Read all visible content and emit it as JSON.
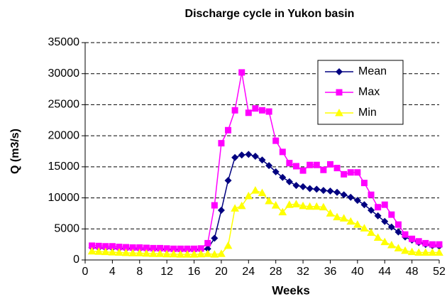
{
  "chart_data": {
    "type": "line",
    "title": "Discharge cycle in Yukon basin",
    "xlabel": "Weeks",
    "ylabel": "Q (m3/s)",
    "x": [
      1,
      2,
      3,
      4,
      5,
      6,
      7,
      8,
      9,
      10,
      11,
      12,
      13,
      14,
      15,
      16,
      17,
      18,
      19,
      20,
      21,
      22,
      23,
      24,
      25,
      26,
      27,
      28,
      29,
      30,
      31,
      32,
      33,
      34,
      35,
      36,
      37,
      38,
      39,
      40,
      41,
      42,
      43,
      44,
      45,
      46,
      47,
      48,
      49,
      50,
      51,
      52
    ],
    "xlim": [
      0,
      52
    ],
    "xticks": [
      0,
      4,
      8,
      12,
      16,
      20,
      24,
      28,
      32,
      36,
      40,
      44,
      48,
      52
    ],
    "ylim": [
      0,
      35000
    ],
    "yticks": [
      0,
      5000,
      10000,
      15000,
      20000,
      25000,
      30000,
      35000
    ],
    "grid": true,
    "legend": "upper right",
    "series": [
      {
        "name": "Mean",
        "color": "#000080",
        "marker": "diamond",
        "values": [
          2000,
          1950,
          1900,
          1900,
          1850,
          1800,
          1800,
          1750,
          1750,
          1700,
          1700,
          1650,
          1650,
          1600,
          1600,
          1600,
          1650,
          1800,
          3500,
          8000,
          12800,
          16500,
          16900,
          17000,
          16700,
          16100,
          15200,
          14200,
          13300,
          12600,
          12000,
          11800,
          11500,
          11400,
          11200,
          11100,
          10900,
          10500,
          10100,
          9600,
          8900,
          8000,
          7100,
          6200,
          5300,
          4500,
          3700,
          3200,
          2800,
          2500,
          2300,
          2200
        ]
      },
      {
        "name": "Max",
        "color": "#ff00ff",
        "marker": "square",
        "values": [
          2300,
          2250,
          2200,
          2200,
          2100,
          2050,
          2000,
          2000,
          1950,
          1900,
          1900,
          1850,
          1800,
          1800,
          1800,
          1800,
          1850,
          2700,
          8800,
          18800,
          20900,
          24100,
          30200,
          23700,
          24400,
          24100,
          23900,
          19200,
          17400,
          15600,
          15100,
          14400,
          15300,
          15300,
          14500,
          15400,
          14800,
          13800,
          14100,
          14100,
          12400,
          10500,
          8500,
          8900,
          7300,
          5700,
          4100,
          3400,
          3000,
          2700,
          2500,
          2500
        ]
      },
      {
        "name": "Min",
        "color": "#ffff00",
        "marker": "triangle",
        "values": [
          1400,
          1350,
          1300,
          1250,
          1200,
          1150,
          1100,
          1100,
          1050,
          1000,
          1000,
          950,
          950,
          900,
          900,
          900,
          950,
          1000,
          900,
          1000,
          2300,
          8300,
          8700,
          10300,
          11200,
          10800,
          9500,
          8800,
          7700,
          8900,
          9000,
          8700,
          8600,
          8600,
          8500,
          7500,
          6900,
          6700,
          6200,
          5700,
          5100,
          4400,
          3600,
          2900,
          2400,
          1900,
          1500,
          1300,
          1200,
          1200,
          1200,
          1200
        ]
      }
    ]
  }
}
